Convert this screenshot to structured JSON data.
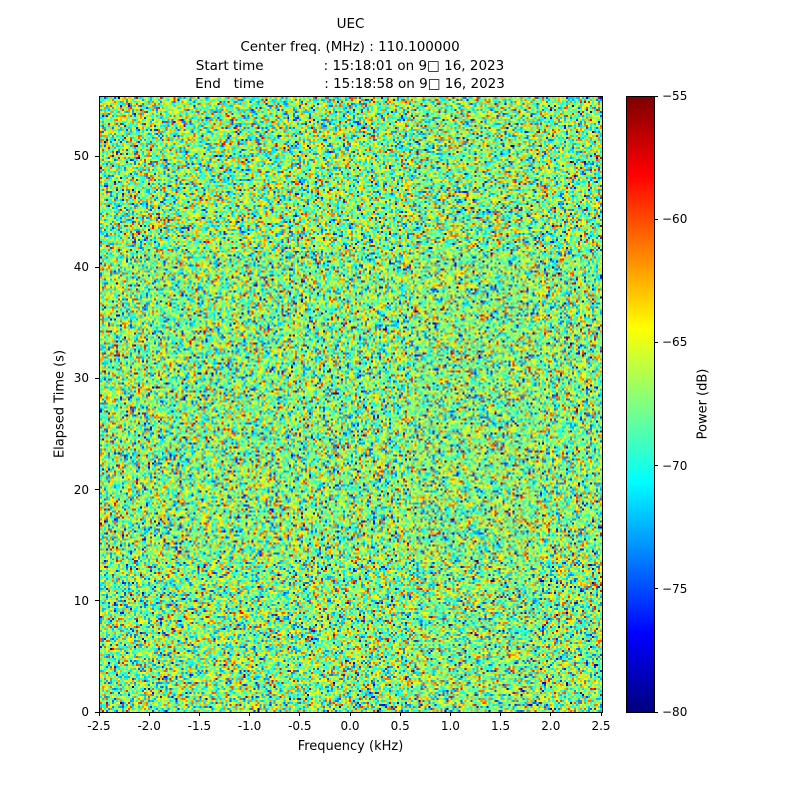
{
  "title": "UEC",
  "header": {
    "center_freq_line": "Center freq. (MHz) : 110.100000",
    "start_time_line": "Start time              : 15:18:01 on 9□ 16, 2023",
    "end_time_line": "End   time              : 15:18:58 on 9□ 16, 2023"
  },
  "chart_data": {
    "type": "heatmap",
    "title": "UEC",
    "subtitle_lines": [
      "Center freq. (MHz) : 110.100000",
      "Start time : 15:18:01 on 9□ 16, 2023",
      "End time : 15:18:58 on 9□ 16, 2023"
    ],
    "xlabel": "Frequency (kHz)",
    "ylabel": "Elapsed Time (s)",
    "colorbar_label": "Power (dB)",
    "xlim": [
      -2.5,
      2.5
    ],
    "ylim": [
      0,
      55.4
    ],
    "xticks": [
      -2.5,
      -2.0,
      -1.5,
      -1.0,
      -0.5,
      0.0,
      0.5,
      1.0,
      1.5,
      2.0,
      2.5
    ],
    "xtick_labels": [
      "-2.5",
      "-2.0",
      "-1.5",
      "-1.0",
      "-0.5",
      "0.0",
      "0.5",
      "1.0",
      "1.5",
      "2.0",
      "2.5"
    ],
    "yticks": [
      0,
      10,
      20,
      30,
      40,
      50
    ],
    "ytick_labels": [
      "0",
      "10",
      "20",
      "30",
      "40",
      "50"
    ],
    "colorbar_range": [
      -80,
      -55
    ],
    "colorbar_ticks": [
      -55,
      -60,
      -65,
      -70,
      -75,
      -80
    ],
    "colorbar_tick_labels": [
      "−55",
      "−60",
      "−65",
      "−70",
      "−75",
      "−80"
    ],
    "colormap": "jet",
    "legend": "none",
    "grid": false,
    "noise": {
      "description": "broadband noise spectrogram, no visible narrowband signal",
      "mean_db": -67.3,
      "std_db": 4.0,
      "seed": 42,
      "freq_bins": 252,
      "time_bins": 308
    }
  }
}
